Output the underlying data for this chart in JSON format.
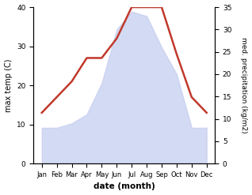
{
  "months": [
    "Jan",
    "Feb",
    "Mar",
    "Apr",
    "May",
    "Jun",
    "Jul",
    "Aug",
    "Sep",
    "Oct",
    "Nov",
    "Dec"
  ],
  "temperature": [
    13,
    17,
    21,
    27,
    27,
    32,
    40,
    40,
    40,
    28,
    17,
    13
  ],
  "precipitation": [
    8,
    8,
    9,
    11,
    18,
    30,
    34,
    33,
    26,
    20,
    8,
    8
  ],
  "temp_color": "#c0392b",
  "precip_fill_color": "#c5cef0",
  "ylabel_left": "max temp (C)",
  "ylabel_right": "med. precipitation (kg/m2)",
  "xlabel": "date (month)",
  "ylim_left": [
    0,
    40
  ],
  "ylim_right": [
    0,
    35
  ],
  "yticks_left": [
    0,
    10,
    20,
    30,
    40
  ],
  "yticks_right": [
    0,
    5,
    10,
    15,
    20,
    25,
    30,
    35
  ]
}
